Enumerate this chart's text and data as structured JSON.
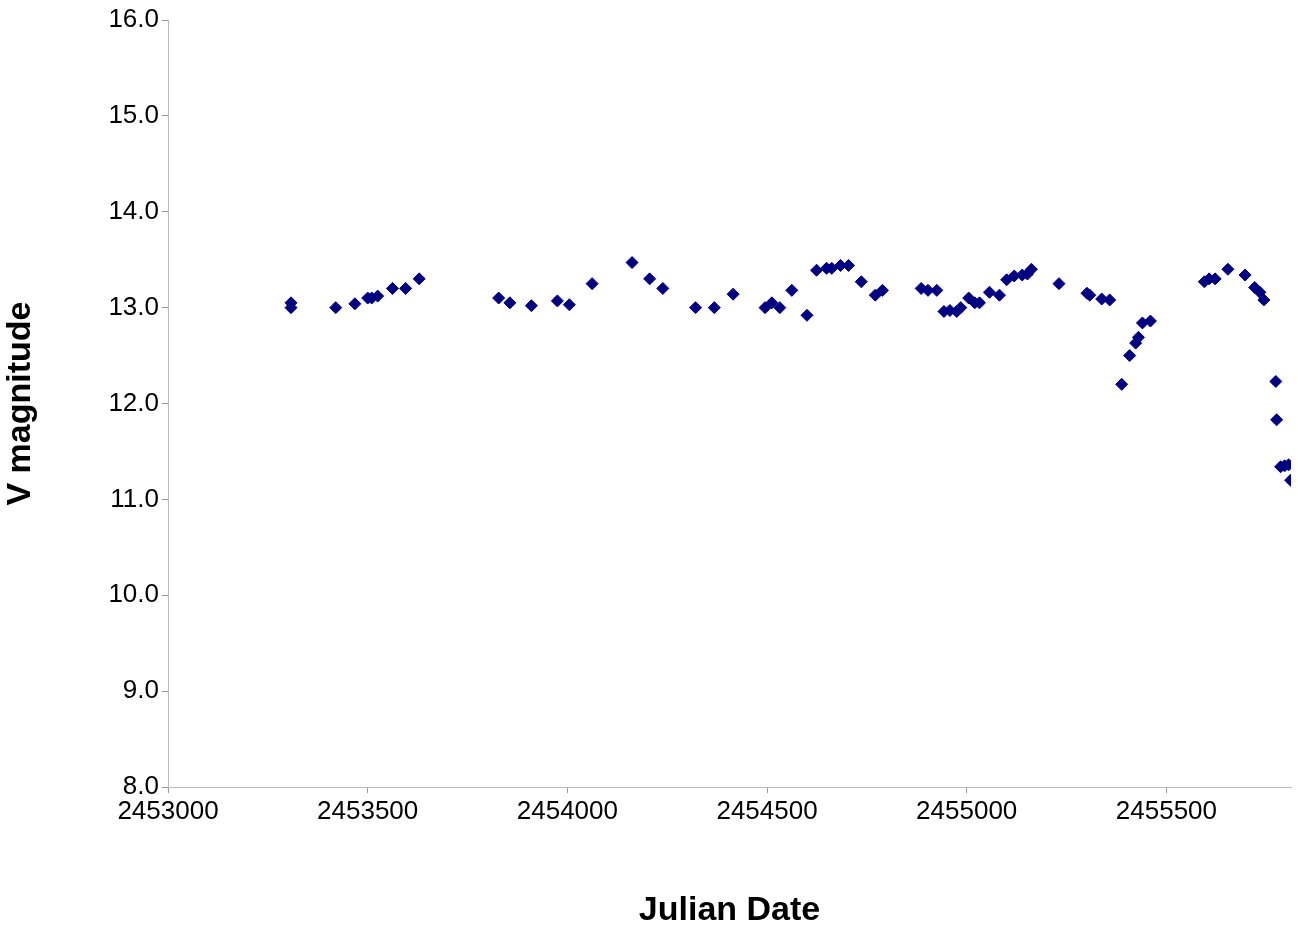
{
  "chart_data": {
    "type": "scatter",
    "xlabel": "Julian Date",
    "ylabel": "V magnitude",
    "marker": "diamond",
    "xlim": [
      2453000,
      2455812
    ],
    "xticks": [
      2453000,
      2453500,
      2454000,
      2454500,
      2455000,
      2455500
    ],
    "ylim": [
      8,
      16
    ],
    "yticks": [
      {
        "value": 8,
        "label": "8.0"
      },
      {
        "value": 9,
        "label": "9.0"
      },
      {
        "value": 10,
        "label": "10.0"
      },
      {
        "value": 11,
        "label": "11.0"
      },
      {
        "value": 12,
        "label": "12.0"
      },
      {
        "value": 13,
        "label": "13.0"
      },
      {
        "value": 14,
        "label": "14.0"
      },
      {
        "value": 15,
        "label": "15.0"
      },
      {
        "value": 16,
        "label": "16.0"
      }
    ],
    "series": [
      {
        "color": "#000080",
        "x": [
          2453308,
          2453308,
          2453420,
          2453468,
          2453500,
          2453510,
          2453525,
          2453562,
          2453595,
          2453629,
          2453828,
          2453856,
          2453910,
          2453975,
          2454005,
          2454062,
          2454162,
          2454206,
          2454239,
          2454321,
          2454368,
          2454415,
          2454495,
          2454512,
          2454532,
          2454562,
          2454600,
          2454624,
          2454649,
          2454662,
          2454684,
          2454704,
          2454736,
          2454771,
          2454789,
          2454886,
          2454903,
          2454925,
          2454943,
          2454958,
          2454975,
          2454985,
          2455005,
          2455020,
          2455032,
          2455057,
          2455082,
          2455100,
          2455119,
          2455139,
          2455152,
          2455162,
          2455231,
          2455301,
          2455308,
          2455338,
          2455358,
          2455388,
          2455408,
          2455423,
          2455430,
          2455440,
          2455460,
          2455595,
          2455607,
          2455622,
          2455654,
          2455697,
          2455721,
          2455734,
          2455744,
          2455774,
          2455776,
          2455786,
          2455796,
          2455806,
          2455811
        ],
        "values": [
          13.05,
          13.0,
          13.0,
          13.04,
          13.1,
          13.1,
          13.12,
          13.2,
          13.2,
          13.3,
          13.1,
          13.05,
          13.02,
          13.07,
          13.03,
          13.25,
          13.47,
          13.3,
          13.2,
          13.0,
          13.0,
          13.14,
          13.0,
          13.05,
          13.0,
          13.18,
          12.92,
          13.39,
          13.41,
          13.41,
          13.44,
          13.44,
          13.27,
          13.13,
          13.18,
          13.2,
          13.18,
          13.18,
          12.96,
          12.97,
          12.96,
          13.0,
          13.1,
          13.05,
          13.05,
          13.16,
          13.13,
          13.29,
          13.33,
          13.34,
          13.35,
          13.4,
          13.25,
          13.15,
          13.13,
          13.09,
          13.08,
          12.2,
          12.5,
          12.63,
          12.69,
          12.84,
          12.86,
          13.27,
          13.3,
          13.3,
          13.4,
          13.34,
          13.21,
          13.16,
          13.08,
          12.23,
          11.83,
          11.34,
          11.35,
          11.36,
          11.2
        ]
      }
    ]
  }
}
